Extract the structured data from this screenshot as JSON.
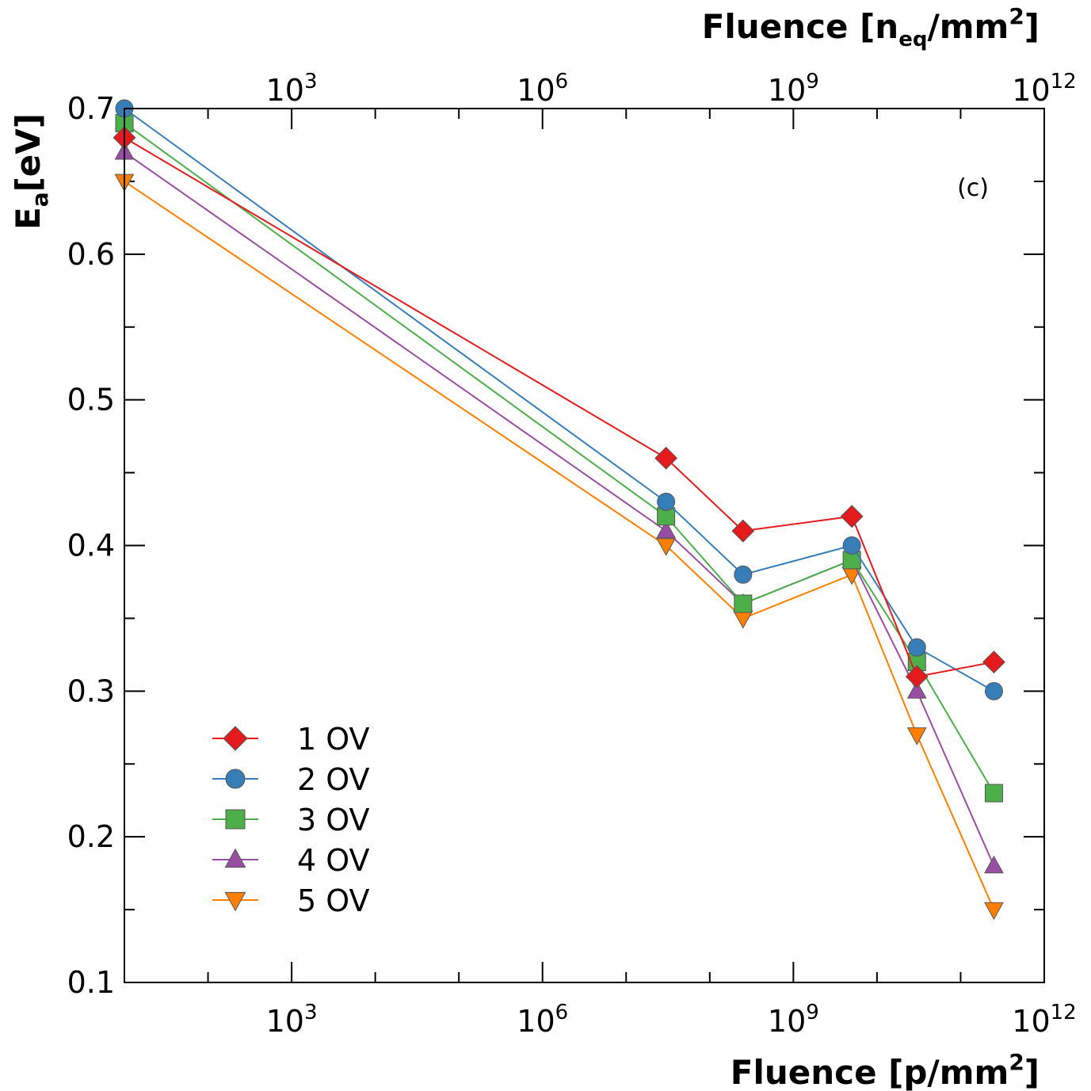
{
  "chart_data": {
    "type": "line",
    "xscale": "log",
    "xlim": [
      10,
      1000000000000.0
    ],
    "ylim": [
      0.1,
      0.7
    ],
    "x_bottom_label": {
      "main": "Fluence [p/mm",
      "sup": "2",
      "close": "]"
    },
    "x_top_label": {
      "main": "Fluence [n",
      "sub": "eq",
      "mid": "/mm",
      "sup": "2",
      "close": "]"
    },
    "y_label": {
      "main": "E",
      "sub": "a",
      "rest": "[eV]"
    },
    "x_ticks": [
      {
        "value": 1000,
        "base": "10",
        "exp": "3"
      },
      {
        "value": 1000000,
        "base": "10",
        "exp": "6"
      },
      {
        "value": 1000000000,
        "base": "10",
        "exp": "9"
      },
      {
        "value": 1000000000000,
        "base": "10",
        "exp": "12"
      }
    ],
    "y_ticks": [
      "0.1",
      "0.2",
      "0.3",
      "0.4",
      "0.5",
      "0.6",
      "0.7"
    ],
    "annotation": "(c)",
    "legend_position": "bottom-left",
    "x": [
      10,
      30000000,
      250000000,
      5000000000,
      30000000000,
      250000000000
    ],
    "series": [
      {
        "name": "1 OV",
        "marker": "diamond",
        "color": "#e41a1c",
        "values": [
          0.68,
          0.46,
          0.41,
          0.42,
          0.31,
          0.32
        ]
      },
      {
        "name": "2 OV",
        "marker": "circle",
        "color": "#377eb8",
        "values": [
          0.7,
          0.43,
          0.38,
          0.4,
          0.33,
          0.3
        ]
      },
      {
        "name": "3 OV",
        "marker": "square",
        "color": "#4daf4a",
        "values": [
          0.69,
          0.42,
          0.36,
          0.39,
          0.32,
          0.23
        ]
      },
      {
        "name": "4 OV",
        "marker": "triangle-up",
        "color": "#984ea3",
        "values": [
          0.67,
          0.41,
          0.36,
          0.39,
          0.3,
          0.18
        ]
      },
      {
        "name": "5 OV",
        "marker": "triangle-down",
        "color": "#ff7f00",
        "values": [
          0.65,
          0.4,
          0.35,
          0.38,
          0.27,
          0.15
        ]
      }
    ]
  }
}
